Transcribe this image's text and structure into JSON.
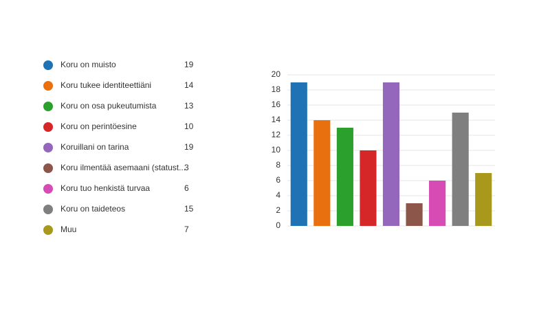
{
  "chart_data": {
    "type": "bar",
    "categories": [
      "Koru on muisto",
      "Koru tukee identiteettiäni",
      "Koru on osa pukeutumista",
      "Koru on perintöesine",
      "Koruillani on tarina",
      "Koru ilmentää asemaani (statust...",
      "Koru tuo henkistä turvaa",
      "Koru on taideteos",
      "Muu"
    ],
    "values": [
      19,
      14,
      13,
      10,
      19,
      3,
      6,
      15,
      7
    ],
    "colors": [
      "#1f72b4",
      "#e8700f",
      "#2ca02c",
      "#d62728",
      "#9467bd",
      "#8c564b",
      "#d64bb4",
      "#7f7f7f",
      "#a8981c"
    ],
    "ylim": [
      0,
      20
    ],
    "yticks": [
      0,
      2,
      4,
      6,
      8,
      10,
      12,
      14,
      16,
      18,
      20
    ],
    "grid": true
  }
}
